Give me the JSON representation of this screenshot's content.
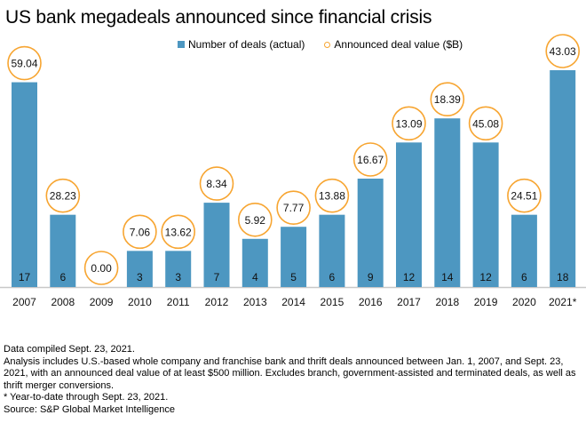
{
  "chart_data": {
    "type": "bar",
    "title": "US bank megadeals announced since financial crisis",
    "xlabel": "",
    "ylabel": "",
    "ylim": [
      0,
      18
    ],
    "grid": false,
    "legend_position": "top-center",
    "categories": [
      "2007",
      "2008",
      "2009",
      "2010",
      "2011",
      "2012",
      "2013",
      "2014",
      "2015",
      "2016",
      "2017",
      "2018",
      "2019",
      "2020",
      "2021*"
    ],
    "series": [
      {
        "name": "Number of deals (actual)",
        "kind": "bar",
        "color": "#4d97c1",
        "values": [
          17,
          6,
          0,
          3,
          3,
          7,
          4,
          5,
          6,
          9,
          12,
          14,
          12,
          6,
          18
        ]
      },
      {
        "name": "Announced deal value ($B)",
        "kind": "circle-label",
        "color": "#f7a531",
        "values": [
          59.04,
          28.23,
          0.0,
          7.06,
          13.62,
          8.34,
          5.92,
          7.77,
          13.88,
          16.67,
          13.09,
          18.39,
          45.08,
          24.51,
          43.03
        ],
        "labels": [
          "59.04",
          "28.23",
          "0.00",
          "7.06",
          "13.62",
          "8.34",
          "5.92",
          "7.77",
          "13.88",
          "16.67",
          "13.09",
          "18.39",
          "45.08",
          "24.51",
          "43.03"
        ]
      }
    ]
  },
  "legend": {
    "bar_label": "Number of deals (actual)",
    "circle_label": "Announced deal value ($B)"
  },
  "notes": [
    "Data compiled Sept. 23, 2021.",
    "Analysis includes U.S.-based whole company and franchise bank and thrift deals announced between Jan. 1, 2007, and Sept. 23, 2021, with an announced deal value of at least $500 million. Excludes branch, government-assisted and terminated deals, as well as thrift merger conversions.",
    "* Year-to-date through Sept. 23, 2021.",
    "Source: S&P Global Market Intelligence"
  ]
}
